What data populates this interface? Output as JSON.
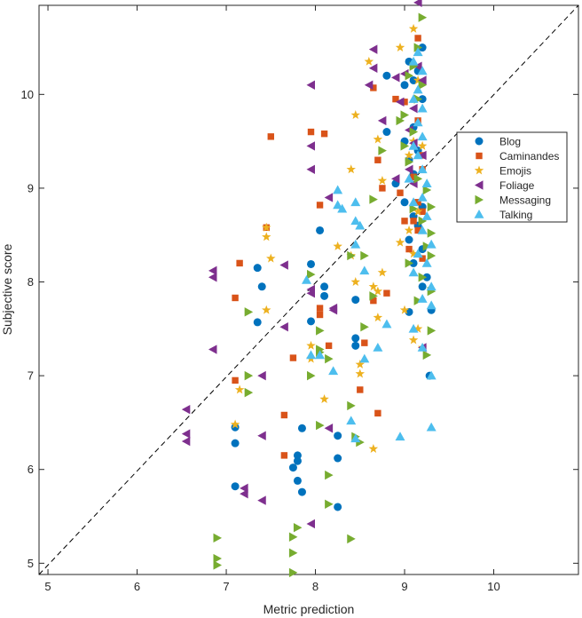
{
  "chart_data": {
    "type": "scatter",
    "title": "",
    "xlabel": "Metric prediction",
    "ylabel": "Subjective score",
    "xlim": [
      4.9,
      10.95
    ],
    "ylim": [
      4.88,
      10.95
    ],
    "xticks": [
      5,
      6,
      7,
      8,
      9,
      10
    ],
    "yticks": [
      5,
      6,
      7,
      8,
      9,
      10
    ],
    "grid": false,
    "legend_position": "right",
    "reference_line": {
      "style": "dashed",
      "color": "#000000",
      "from": [
        4.9,
        4.88
      ],
      "to": [
        10.95,
        10.95
      ]
    },
    "series": [
      {
        "name": "Blog",
        "marker": "circle",
        "color": "#0072BD",
        "points": [
          [
            9.2,
            10.5
          ],
          [
            9.05,
            10.35
          ],
          [
            9.1,
            10.15
          ],
          [
            9.15,
            10.25
          ],
          [
            8.8,
            10.2
          ],
          [
            9.0,
            10.1
          ],
          [
            9.2,
            9.95
          ],
          [
            9.1,
            9.65
          ],
          [
            9.0,
            9.5
          ],
          [
            9.15,
            9.4
          ],
          [
            9.05,
            9.3
          ],
          [
            9.1,
            9.15
          ],
          [
            8.9,
            9.05
          ],
          [
            9.0,
            8.85
          ],
          [
            9.2,
            8.8
          ],
          [
            9.1,
            8.7
          ],
          [
            9.15,
            8.6
          ],
          [
            9.05,
            8.45
          ],
          [
            9.2,
            8.35
          ],
          [
            9.1,
            8.2
          ],
          [
            9.25,
            8.05
          ],
          [
            9.2,
            7.95
          ],
          [
            9.3,
            7.7
          ],
          [
            9.05,
            7.68
          ],
          [
            9.28,
            7.0
          ],
          [
            8.8,
            9.6
          ],
          [
            8.05,
            8.55
          ],
          [
            7.35,
            8.15
          ],
          [
            7.4,
            7.95
          ],
          [
            7.35,
            7.57
          ],
          [
            7.95,
            8.19
          ],
          [
            8.1,
            7.95
          ],
          [
            8.1,
            7.85
          ],
          [
            7.95,
            7.58
          ],
          [
            8.45,
            7.81
          ],
          [
            8.45,
            7.4
          ],
          [
            8.45,
            7.32
          ],
          [
            7.1,
            6.45
          ],
          [
            7.1,
            6.28
          ],
          [
            7.1,
            5.82
          ],
          [
            7.85,
            6.44
          ],
          [
            7.8,
            6.15
          ],
          [
            7.8,
            6.09
          ],
          [
            7.75,
            6.02
          ],
          [
            7.8,
            5.88
          ],
          [
            7.85,
            5.76
          ],
          [
            8.25,
            6.36
          ],
          [
            8.25,
            6.12
          ],
          [
            8.25,
            5.6
          ]
        ]
      },
      {
        "name": "Caminandes",
        "marker": "square",
        "color": "#D95319",
        "points": [
          [
            9.15,
            10.6
          ],
          [
            8.65,
            10.07
          ],
          [
            8.9,
            9.95
          ],
          [
            9.0,
            9.92
          ],
          [
            9.15,
            9.72
          ],
          [
            9.2,
            9.35
          ],
          [
            8.7,
            9.3
          ],
          [
            9.1,
            9.12
          ],
          [
            8.75,
            9.0
          ],
          [
            8.95,
            8.95
          ],
          [
            9.15,
            8.85
          ],
          [
            9.1,
            8.65
          ],
          [
            9.0,
            8.65
          ],
          [
            9.2,
            8.75
          ],
          [
            9.15,
            8.55
          ],
          [
            9.05,
            8.35
          ],
          [
            9.2,
            8.25
          ],
          [
            8.8,
            7.88
          ],
          [
            8.65,
            7.8
          ],
          [
            8.55,
            7.35
          ],
          [
            8.5,
            6.85
          ],
          [
            8.7,
            6.6
          ],
          [
            9.2,
            9.2
          ],
          [
            7.5,
            9.55
          ],
          [
            7.95,
            9.6
          ],
          [
            8.1,
            9.58
          ],
          [
            8.05,
            8.82
          ],
          [
            7.45,
            8.58
          ],
          [
            7.15,
            8.2
          ],
          [
            7.1,
            7.83
          ],
          [
            8.05,
            7.72
          ],
          [
            8.05,
            7.65
          ],
          [
            8.15,
            7.32
          ],
          [
            7.75,
            7.19
          ],
          [
            7.1,
            6.95
          ],
          [
            7.65,
            6.58
          ],
          [
            7.65,
            6.15
          ]
        ]
      },
      {
        "name": "Emojis",
        "marker": "star",
        "color": "#EDB120",
        "points": [
          [
            9.1,
            10.7
          ],
          [
            8.95,
            10.5
          ],
          [
            8.6,
            10.35
          ],
          [
            9.15,
            10.15
          ],
          [
            8.45,
            9.78
          ],
          [
            8.7,
            9.52
          ],
          [
            9.1,
            9.5
          ],
          [
            9.2,
            9.45
          ],
          [
            9.05,
            9.35
          ],
          [
            8.4,
            9.2
          ],
          [
            8.75,
            9.08
          ],
          [
            9.15,
            8.75
          ],
          [
            9.05,
            8.55
          ],
          [
            8.95,
            8.42
          ],
          [
            9.1,
            8.3
          ],
          [
            8.75,
            8.1
          ],
          [
            8.65,
            7.95
          ],
          [
            8.7,
            7.9
          ],
          [
            8.7,
            7.62
          ],
          [
            9.0,
            7.7
          ],
          [
            9.15,
            7.5
          ],
          [
            9.1,
            7.38
          ],
          [
            9.2,
            7.3
          ],
          [
            8.45,
            8.0
          ],
          [
            8.25,
            8.38
          ],
          [
            8.4,
            8.28
          ],
          [
            7.45,
            8.58
          ],
          [
            7.45,
            8.48
          ],
          [
            7.5,
            8.25
          ],
          [
            7.45,
            7.7
          ],
          [
            7.95,
            7.32
          ],
          [
            7.95,
            7.18
          ],
          [
            8.5,
            7.12
          ],
          [
            8.5,
            7.02
          ],
          [
            8.1,
            6.75
          ],
          [
            7.15,
            6.85
          ],
          [
            7.1,
            6.48
          ],
          [
            8.65,
            6.22
          ]
        ]
      },
      {
        "name": "Foliage",
        "marker": "triangle-left",
        "color": "#7E2F8E",
        "points": [
          [
            9.15,
            10.98
          ],
          [
            8.65,
            10.48
          ],
          [
            8.65,
            10.28
          ],
          [
            8.6,
            10.1
          ],
          [
            8.9,
            10.18
          ],
          [
            9.0,
            10.22
          ],
          [
            9.15,
            10.3
          ],
          [
            9.2,
            10.15
          ],
          [
            8.95,
            9.92
          ],
          [
            9.1,
            9.85
          ],
          [
            8.75,
            9.72
          ],
          [
            9.05,
            9.62
          ],
          [
            9.1,
            9.48
          ],
          [
            9.2,
            9.35
          ],
          [
            9.05,
            9.2
          ],
          [
            8.9,
            9.1
          ],
          [
            9.1,
            9.05
          ],
          [
            7.95,
            10.1
          ],
          [
            7.95,
            9.45
          ],
          [
            7.95,
            9.2
          ],
          [
            8.15,
            8.9
          ],
          [
            7.65,
            8.18
          ],
          [
            7.95,
            7.92
          ],
          [
            7.95,
            7.88
          ],
          [
            8.2,
            7.72
          ],
          [
            8.2,
            7.7
          ],
          [
            7.65,
            7.52
          ],
          [
            6.85,
            8.12
          ],
          [
            6.85,
            8.05
          ],
          [
            6.85,
            7.28
          ],
          [
            7.4,
            7.0
          ],
          [
            7.4,
            6.36
          ],
          [
            7.2,
            5.8
          ],
          [
            7.2,
            5.74
          ],
          [
            7.4,
            5.67
          ],
          [
            6.55,
            6.64
          ],
          [
            6.55,
            6.38
          ],
          [
            6.55,
            6.3
          ],
          [
            7.95,
            5.42
          ],
          [
            8.15,
            6.44
          ],
          [
            9.2,
            7.3
          ]
        ]
      },
      {
        "name": "Messaging",
        "marker": "triangle-right",
        "color": "#77AC30",
        "points": [
          [
            9.2,
            10.82
          ],
          [
            9.15,
            10.5
          ],
          [
            9.1,
            10.3
          ],
          [
            9.05,
            10.2
          ],
          [
            9.2,
            10.1
          ],
          [
            9.15,
            9.95
          ],
          [
            9.0,
            9.78
          ],
          [
            8.95,
            9.72
          ],
          [
            9.1,
            9.6
          ],
          [
            9.0,
            9.45
          ],
          [
            8.75,
            9.4
          ],
          [
            9.05,
            9.28
          ],
          [
            9.15,
            9.1
          ],
          [
            9.25,
            8.98
          ],
          [
            9.1,
            8.78
          ],
          [
            9.3,
            8.8
          ],
          [
            9.2,
            8.65
          ],
          [
            9.3,
            8.52
          ],
          [
            9.25,
            8.38
          ],
          [
            9.3,
            8.28
          ],
          [
            9.05,
            8.2
          ],
          [
            9.2,
            8.05
          ],
          [
            9.3,
            7.9
          ],
          [
            9.15,
            7.8
          ],
          [
            9.3,
            7.48
          ],
          [
            9.25,
            7.22
          ],
          [
            8.65,
            8.88
          ],
          [
            8.55,
            8.28
          ],
          [
            8.4,
            8.28
          ],
          [
            8.65,
            7.85
          ],
          [
            8.55,
            7.52
          ],
          [
            7.95,
            8.08
          ],
          [
            7.25,
            7.68
          ],
          [
            7.25,
            7.0
          ],
          [
            7.25,
            6.82
          ],
          [
            8.05,
            7.48
          ],
          [
            8.05,
            7.28
          ],
          [
            8.05,
            7.25
          ],
          [
            8.15,
            7.18
          ],
          [
            7.95,
            7.0
          ],
          [
            8.4,
            6.68
          ],
          [
            8.45,
            6.35
          ],
          [
            8.5,
            6.29
          ],
          [
            8.05,
            6.47
          ],
          [
            8.15,
            5.94
          ],
          [
            8.15,
            5.63
          ],
          [
            8.4,
            5.26
          ],
          [
            6.9,
            5.27
          ],
          [
            6.9,
            5.05
          ],
          [
            6.9,
            4.98
          ],
          [
            7.8,
            5.38
          ],
          [
            7.75,
            5.28
          ],
          [
            7.75,
            5.11
          ],
          [
            7.75,
            4.9
          ]
        ]
      },
      {
        "name": "Talking",
        "marker": "triangle-up",
        "color": "#4DBEEE",
        "points": [
          [
            9.15,
            10.45
          ],
          [
            9.1,
            10.35
          ],
          [
            9.2,
            10.25
          ],
          [
            9.15,
            10.05
          ],
          [
            9.1,
            9.95
          ],
          [
            9.2,
            9.85
          ],
          [
            9.15,
            9.7
          ],
          [
            9.2,
            9.55
          ],
          [
            9.1,
            9.45
          ],
          [
            9.15,
            9.35
          ],
          [
            9.2,
            9.2
          ],
          [
            9.05,
            9.1
          ],
          [
            9.25,
            9.05
          ],
          [
            9.2,
            8.9
          ],
          [
            9.1,
            8.85
          ],
          [
            9.25,
            8.7
          ],
          [
            9.2,
            8.55
          ],
          [
            9.3,
            8.4
          ],
          [
            9.15,
            8.3
          ],
          [
            9.25,
            8.2
          ],
          [
            9.1,
            8.1
          ],
          [
            9.3,
            7.95
          ],
          [
            9.2,
            7.82
          ],
          [
            9.3,
            7.75
          ],
          [
            9.1,
            7.5
          ],
          [
            9.2,
            7.3
          ],
          [
            9.3,
            7.0
          ],
          [
            9.3,
            6.45
          ],
          [
            8.95,
            6.35
          ],
          [
            8.8,
            7.55
          ],
          [
            8.7,
            7.3
          ],
          [
            8.5,
            8.6
          ],
          [
            8.55,
            8.12
          ],
          [
            8.45,
            8.4
          ],
          [
            8.55,
            7.18
          ],
          [
            8.4,
            6.52
          ],
          [
            8.45,
            6.33
          ],
          [
            8.05,
            7.22
          ],
          [
            7.9,
            8.02
          ],
          [
            7.95,
            7.22
          ],
          [
            8.25,
            8.82
          ],
          [
            8.3,
            8.78
          ],
          [
            8.25,
            8.98
          ],
          [
            8.45,
            8.85
          ],
          [
            8.45,
            8.65
          ],
          [
            8.2,
            7.05
          ]
        ]
      }
    ]
  }
}
